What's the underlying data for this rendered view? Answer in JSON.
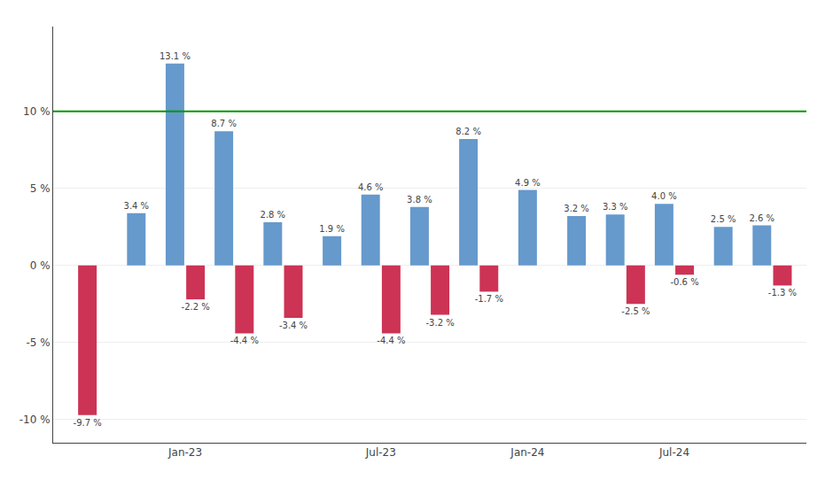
{
  "chart_data": {
    "type": "bar",
    "categories": [
      null,
      null,
      "Jan-23",
      null,
      null,
      null,
      "Jul-23",
      null,
      null,
      "Jan-24",
      null,
      null,
      "Jul-24",
      null,
      null
    ],
    "series": [
      {
        "color": "#6699CC",
        "values": [
          null,
          3.4,
          13.1,
          8.7,
          2.8,
          1.9,
          4.6,
          3.8,
          8.2,
          4.9,
          3.2,
          3.3,
          4.0,
          2.5,
          2.6
        ],
        "value_labels": [
          null,
          "3.4 %",
          "13.1 %",
          "8.7 %",
          "2.8 %",
          "1.9 %",
          "4.6 %",
          "3.8 %",
          "8.2 %",
          "4.9 %",
          "3.2 %",
          "3.3 %",
          "4.0 %",
          "2.5 %",
          "2.6 %"
        ]
      },
      {
        "color": "#CC3355",
        "values": [
          -9.7,
          null,
          -2.2,
          -4.4,
          -3.4,
          null,
          -4.4,
          -3.2,
          -1.7,
          null,
          null,
          -2.5,
          -0.6,
          null,
          -1.3
        ],
        "value_labels": [
          "-9.7 %",
          null,
          "-2.2 %",
          "-4.4 %",
          "-3.4 %",
          null,
          "-4.4 %",
          "-3.2 %",
          "-1.7 %",
          null,
          null,
          "-2.5 %",
          "-0.6 %",
          null,
          "-1.3 %"
        ]
      }
    ],
    "ylim": [
      -11.5,
      15.5
    ],
    "yticks": [
      {
        "value": -10,
        "label": "-10 %"
      },
      {
        "value": -5,
        "label": "-5 %"
      },
      {
        "value": 0,
        "label": "0 %"
      },
      {
        "value": 5,
        "label": "5 %"
      },
      {
        "value": 10,
        "label": "10 %"
      }
    ],
    "hline": {
      "value": 10,
      "color": "#009900"
    },
    "grid": true,
    "data_labels": true
  }
}
